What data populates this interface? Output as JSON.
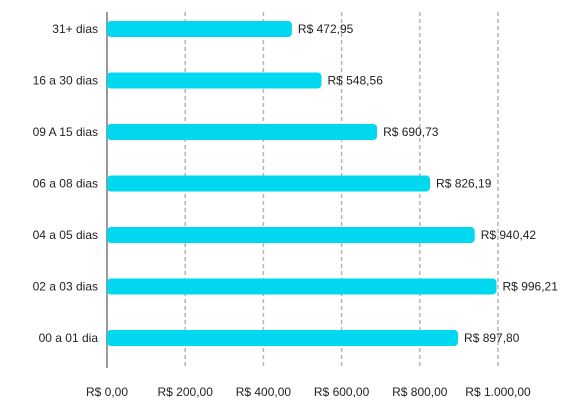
{
  "chart_data": {
    "type": "bar",
    "orientation": "horizontal",
    "categories": [
      "31+ dias",
      "16 a 30 dias",
      "09 A 15 dias",
      "06 a 08 dias",
      "04 a 05 dias",
      "02 a 03 dias",
      "00 a 01 dia"
    ],
    "values": [
      472.95,
      548.56,
      690.73,
      826.19,
      940.42,
      996.21,
      897.8
    ],
    "value_labels": [
      "R$ 472,95",
      "R$ 548,56",
      "R$ 690,73",
      "R$ 826,19",
      "R$ 940,42",
      "R$ 996,21",
      "R$ 897,80"
    ],
    "xlim": [
      0,
      1000
    ],
    "x_ticks": [
      0,
      200,
      400,
      600,
      800,
      1000
    ],
    "x_tick_labels": [
      "R$ 0,00",
      "R$ 200,00",
      "R$ 400,00",
      "R$ 600,00",
      "R$ 800,00",
      "R$ 1.000,00"
    ],
    "grid": "vertical dashed",
    "legend": "none",
    "colors": {
      "bar": "#00d8f0",
      "grid": "#b5b5b5",
      "axis": "#9a9a9a",
      "text": "#222222"
    }
  }
}
